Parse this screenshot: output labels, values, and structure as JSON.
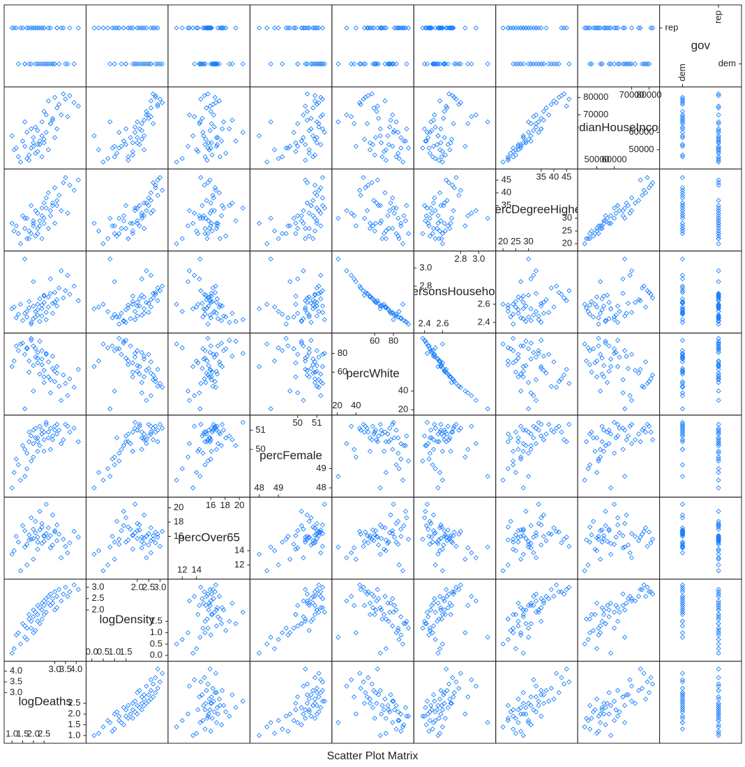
{
  "chart_data": {
    "type": "splom",
    "title": "Scatter Plot Matrix",
    "color": "#1a7fff",
    "variables": [
      {
        "name": "logDeaths",
        "lim": [
          0.8,
          4.3
        ],
        "ticks": [
          {
            "value": 1,
            "label": "1.0"
          },
          1.5,
          {
            "value": 2,
            "label": "2.0"
          },
          2.5,
          {
            "value": 3,
            "label": "3.0"
          },
          3.5,
          {
            "value": 4,
            "label": "4.0"
          }
        ],
        "values": [
          1.0,
          1.2,
          1.3,
          1.5,
          1.6,
          1.7,
          1.8,
          1.8,
          1.9,
          2.0,
          2.0,
          2.1,
          2.2,
          2.2,
          2.3,
          2.4,
          2.4,
          2.5,
          2.5,
          2.6,
          2.7,
          2.7,
          2.8,
          2.9,
          3.0,
          3.1,
          3.2,
          3.4,
          3.5,
          3.7,
          3.9,
          4.1,
          2.3,
          1.7,
          2.6,
          1.4,
          2.1,
          2.8,
          3.3,
          2.0,
          1.1,
          2.4,
          3.0,
          2.9,
          1.9,
          3.6,
          2.5,
          2.2,
          3.1,
          1.6
        ]
      },
      {
        "name": "logDensity",
        "lim": [
          -0.1,
          3.2
        ],
        "ticks": [
          {
            "value": 0,
            "label": "0.0"
          },
          0.5,
          {
            "value": 1,
            "label": "1.0"
          },
          1.5,
          {
            "value": 2,
            "label": "2.0"
          },
          2.5,
          {
            "value": 3,
            "label": "3.0"
          }
        ],
        "values": [
          0.1,
          0.9,
          1.0,
          1.4,
          1.3,
          1.2,
          1.6,
          1.8,
          1.5,
          2.0,
          1.7,
          1.9,
          2.2,
          1.8,
          2.1,
          2.3,
          2.0,
          2.4,
          2.2,
          2.5,
          2.3,
          2.6,
          2.7,
          2.5,
          2.8,
          2.6,
          2.9,
          2.7,
          3.0,
          2.8,
          3.1,
          2.9,
          1.4,
          0.7,
          1.9,
          0.5,
          1.1,
          2.2,
          2.4,
          1.0,
          0.3,
          1.6,
          2.0,
          2.3,
          1.2,
          2.6,
          1.8,
          1.5,
          2.1,
          0.8
        ]
      },
      {
        "name": "percOver65",
        "lim": [
          10.5,
          21
        ],
        "ticks": [
          12,
          14,
          16,
          18,
          20
        ],
        "values": [
          13.5,
          16.0,
          15.2,
          17.5,
          16.8,
          14.9,
          15.5,
          16.2,
          18.6,
          15.7,
          17.0,
          16.5,
          15.9,
          14.2,
          16.9,
          15.0,
          17.8,
          16.0,
          15.3,
          16.4,
          15.8,
          17.2,
          16.1,
          14.8,
          16.6,
          15.4,
          16.3,
          15.6,
          14.6,
          15.1,
          16.7,
          15.9,
          19.5,
          12.0,
          20.5,
          11.2,
          18.1,
          14.4,
          13.0,
          12.8,
          14.0,
          17.3,
          16.8,
          19.0,
          15.6,
          13.7,
          16.1,
          15.2,
          17.6,
          14.5
        ]
      },
      {
        "name": "percFemale",
        "lim": [
          47.7,
          51.6
        ],
        "ticks": [
          48,
          49,
          50,
          51
        ],
        "values": [
          48.0,
          49.5,
          49.2,
          50.2,
          50.0,
          49.8,
          50.4,
          50.9,
          50.7,
          51.0,
          50.3,
          51.1,
          50.6,
          49.9,
          51.2,
          50.8,
          51.0,
          50.5,
          50.9,
          51.3,
          50.6,
          50.9,
          51.1,
          50.7,
          51.2,
          50.8,
          51.0,
          50.5,
          51.3,
          50.9,
          51.1,
          50.4,
          50.2,
          49.0,
          51.4,
          48.4,
          50.6,
          50.0,
          50.3,
          49.6,
          48.8,
          50.8,
          51.0,
          50.5,
          49.4,
          51.2,
          49.9,
          50.4,
          51.3,
          48.6
        ]
      },
      {
        "name": "percWhite",
        "lim": [
          18,
          98
        ],
        "ticks": [
          20,
          40,
          60,
          80
        ],
        "values": [
          66,
          88,
          83,
          91,
          79,
          85,
          72,
          60,
          94,
          67,
          88,
          76,
          81,
          70,
          58,
          74,
          83,
          62,
          49,
          79,
          55,
          71,
          52,
          64,
          50,
          59,
          45,
          57,
          48,
          53,
          44,
          63,
          93,
          86,
          80,
          90,
          85,
          38,
          30,
          40,
          72,
          68,
          61,
          77,
          96,
          35,
          55,
          75,
          66,
          21
        ]
      },
      {
        "name": "personsHousehold",
        "lim": [
          2.32,
          3.15
        ],
        "ticks": [
          2.4,
          2.6,
          2.8,
          {
            "value": 3,
            "label": "3.0"
          }
        ],
        "values": [
          2.55,
          2.45,
          2.49,
          2.42,
          2.5,
          2.46,
          2.56,
          2.63,
          2.4,
          2.58,
          2.44,
          2.52,
          2.48,
          2.6,
          2.66,
          2.55,
          2.47,
          2.62,
          2.7,
          2.51,
          2.68,
          2.57,
          2.72,
          2.61,
          2.73,
          2.65,
          2.78,
          2.67,
          2.75,
          2.71,
          2.8,
          2.64,
          2.41,
          2.52,
          2.43,
          2.6,
          2.46,
          2.88,
          2.97,
          2.85,
          2.57,
          2.59,
          2.62,
          2.5,
          2.38,
          2.92,
          2.69,
          2.54,
          2.58,
          3.1
        ]
      },
      {
        "name": "percDegreeHigher",
        "lim": [
          18.5,
          48
        ],
        "ticks": [
          20,
          25,
          30,
          35,
          40,
          45
        ],
        "values": [
          28,
          27,
          24,
          31,
          26,
          30,
          22,
          25,
          35,
          29,
          28,
          33,
          32,
          24,
          27,
          31,
          34,
          36,
          30,
          38,
          26,
          40,
          33,
          35,
          42,
          37,
          39,
          44,
          46,
          43,
          41,
          45,
          29,
          22,
          34,
          20,
          23,
          31,
          33,
          27,
          25,
          22,
          28,
          36,
          24,
          32,
          28,
          26,
          35,
          30
        ]
      },
      {
        "name": "medianHouseIncome",
        "lim": [
          41000,
          84000
        ],
        "ticks": [
          50000,
          60000,
          70000,
          80000
        ],
        "values": [
          58000,
          51000,
          46000,
          55000,
          52000,
          60000,
          44000,
          47000,
          62000,
          54000,
          57000,
          63000,
          61000,
          49000,
          53000,
          58000,
          66000,
          72000,
          56000,
          70000,
          50000,
          78000,
          65000,
          68000,
          80000,
          74000,
          76000,
          82000,
          79000,
          81000,
          77000,
          75000,
          55000,
          45000,
          60000,
          43000,
          48000,
          65000,
          70000,
          52000,
          50000,
          46000,
          57000,
          67000,
          51000,
          69000,
          54000,
          53000,
          62000,
          66000
        ]
      },
      {
        "name": "gov",
        "categories": [
          "dem",
          "rep"
        ],
        "values": [
          "rep",
          "rep",
          "dem",
          "rep",
          "dem",
          "rep",
          "rep",
          "dem",
          "dem",
          "rep",
          "rep",
          "dem",
          "rep",
          "rep",
          "dem",
          "dem",
          "rep",
          "dem",
          "rep",
          "dem",
          "rep",
          "dem",
          "rep",
          "dem",
          "dem",
          "rep",
          "dem",
          "rep",
          "dem",
          "rep",
          "dem",
          "rep",
          "rep",
          "rep",
          "dem",
          "rep",
          "rep",
          "dem",
          "rep",
          "rep",
          "rep",
          "rep",
          "dem",
          "dem",
          "rep",
          "dem",
          "rep",
          "dem",
          "rep",
          "dem"
        ]
      }
    ]
  }
}
